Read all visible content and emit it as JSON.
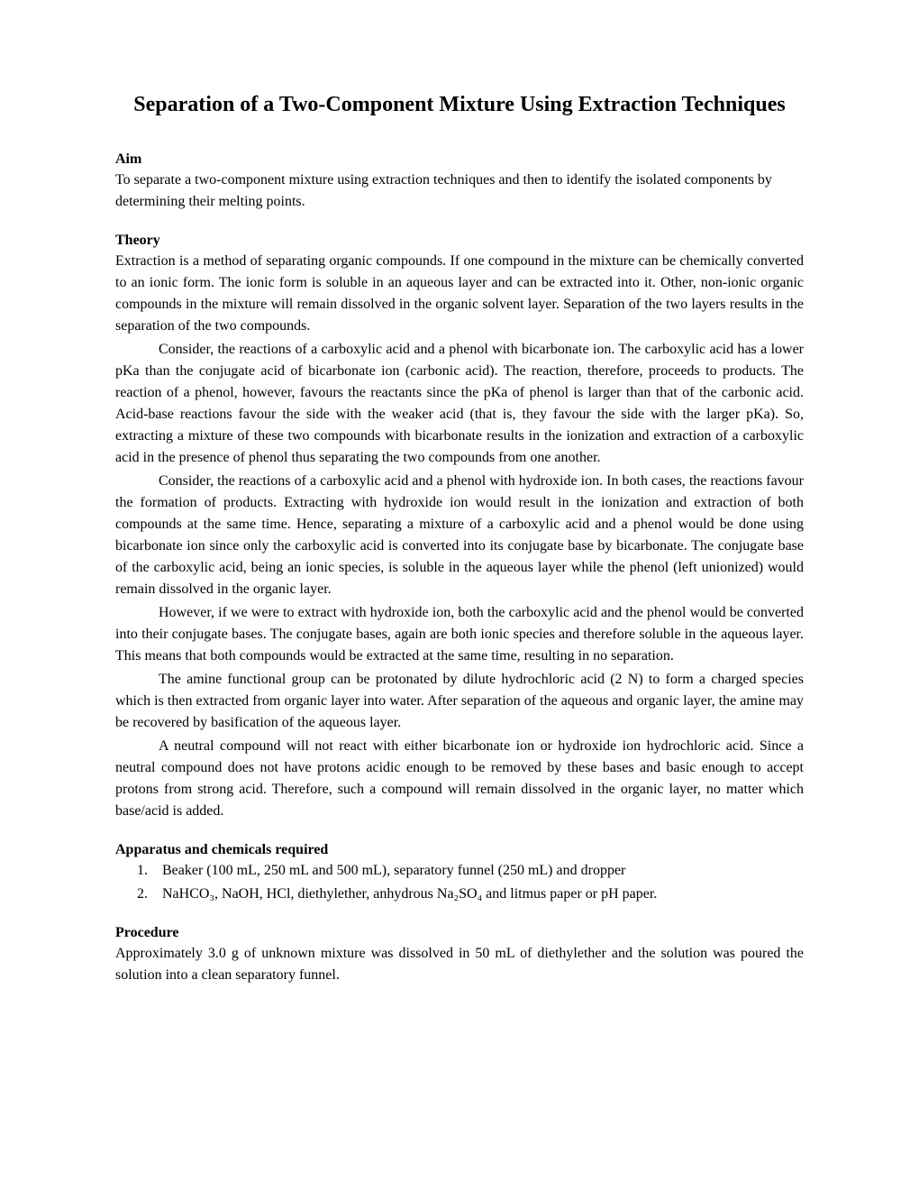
{
  "title": "Separation of a Two-Component Mixture Using Extraction Techniques",
  "sections": {
    "aim": {
      "heading": "Aim",
      "text": "To separate a two-component mixture using extraction techniques and then to identify the isolated components by determining their melting points."
    },
    "theory": {
      "heading": "Theory",
      "p1": "Extraction is a method of separating organic compounds. If one compound in the mixture can be chemically converted to an ionic form. The ionic form is soluble in an aqueous layer and can be extracted into it. Other, non-ionic organic compounds in the mixture will remain dissolved in the organic solvent layer. Separation of the two layers results in the separation of the two compounds.",
      "p2": "Consider, the reactions of a carboxylic acid and a phenol with bicarbonate ion. The carboxylic acid has a lower pKa than the conjugate acid of bicarbonate ion (carbonic acid). The reaction, therefore, proceeds to products. The reaction of a phenol, however, favours the reactants since the pKa of phenol is larger than that of the carbonic acid. Acid-base reactions favour the side with the weaker acid (that is, they favour the side with the larger pKa). So, extracting a mixture of these two compounds with bicarbonate results in the ionization and extraction of a carboxylic acid in the presence of phenol thus separating the two compounds from one another.",
      "p3": "Consider, the reactions of a carboxylic acid and a phenol with hydroxide ion. In both cases, the reactions favour the formation of products. Extracting with hydroxide ion would result in the ionization and extraction of both compounds at the same time. Hence, separating a mixture of a carboxylic acid and a phenol would be done using bicarbonate ion since only the carboxylic acid is converted into its conjugate base by bicarbonate. The conjugate base of the carboxylic acid, being an ionic species, is soluble in the aqueous layer while the phenol (left unionized) would remain dissolved in the organic layer.",
      "p4": "However, if we were to extract with hydroxide ion, both the carboxylic acid and the phenol would be converted into their conjugate bases. The conjugate bases, again are both ionic species and therefore soluble in the aqueous layer. This means that both compounds would be extracted at the same time, resulting in no separation.",
      "p5": "The amine functional group can be protonated by dilute hydrochloric acid (2 N) to form a charged species which is then extracted from organic layer into water.  After separation of the aqueous and organic layer, the amine may be recovered by basification of the aqueous layer.",
      "p6": "A neutral compound will not react with either bicarbonate ion or hydroxide ion hydrochloric acid. Since a neutral compound does not have protons acidic enough to be removed by these bases and basic enough to accept protons from strong acid. Therefore, such a compound will remain dissolved in the organic layer, no matter which base/acid is added."
    },
    "apparatus": {
      "heading": "Apparatus and chemicals required",
      "items": [
        "Beaker (100 mL, 250 mL and 500 mL), separatory funnel (250 mL) and dropper",
        "NaHCO₃, NaOH, HCl, diethylether, anhydrous Na₂SO₄ and litmus paper or pH paper."
      ]
    },
    "procedure": {
      "heading": "Procedure",
      "text": "Approximately 3.0 g of unknown mixture was dissolved in 50 mL of diethylether and the solution was poured the solution into a clean separatory funnel."
    }
  },
  "style": {
    "background_color": "#ffffff",
    "text_color": "#000000",
    "title_fontsize": 24,
    "body_fontsize": 16,
    "font_family": "Times New Roman"
  }
}
